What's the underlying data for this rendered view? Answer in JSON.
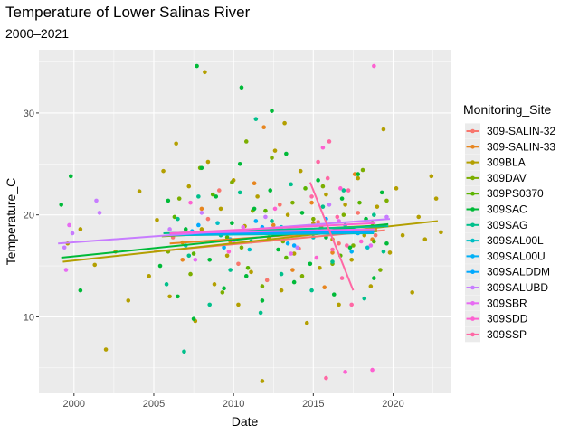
{
  "chart_data": {
    "type": "scatter",
    "title": "Temperature of Lower Salinas River",
    "subtitle": "2000–2021",
    "xlabel": "Date",
    "ylabel": "Temperature_C",
    "xlim": [
      1997.8,
      2023.6
    ],
    "ylim": [
      2.5,
      36.2
    ],
    "x_ticks": [
      2000,
      2005,
      2010,
      2015,
      2020
    ],
    "y_ticks": [
      10,
      20,
      30
    ],
    "x_tick_labels": [
      "2000",
      "2005",
      "2010",
      "2015",
      "2020"
    ],
    "y_tick_labels": [
      "10",
      "20",
      "30"
    ],
    "grid": true,
    "legend": {
      "title": "Monitoring_Site",
      "position": "right"
    },
    "series": [
      {
        "name": "309-SALIN-32",
        "color": "#F8766D",
        "trend": [
          [
            2005.0,
            16.4
          ],
          [
            2019.5,
            18.5
          ]
        ],
        "points": [
          [
            2006.2,
            17.8
          ],
          [
            2008.4,
            19.6
          ],
          [
            2010.3,
            15.2
          ],
          [
            2011.6,
            18.4
          ],
          [
            2012.9,
            21.0
          ],
          [
            2014.1,
            16.7
          ],
          [
            2015.3,
            19.3
          ],
          [
            2016.6,
            17.2
          ],
          [
            2017.8,
            20.2
          ],
          [
            2018.9,
            18.0
          ],
          [
            2012.1,
            13.6
          ],
          [
            2009.1,
            22.4
          ]
        ]
      },
      {
        "name": "309-SALIN-33",
        "color": "#E7851E",
        "trend": [
          [
            2006.0,
            17.2
          ],
          [
            2019.0,
            18.6
          ]
        ],
        "points": [
          [
            2006.8,
            15.6
          ],
          [
            2008.0,
            20.6
          ],
          [
            2009.8,
            17.4
          ],
          [
            2011.3,
            23.1
          ],
          [
            2012.5,
            19.0
          ],
          [
            2013.7,
            14.6
          ],
          [
            2014.9,
            21.2
          ],
          [
            2016.2,
            16.3
          ],
          [
            2017.6,
            24.0
          ],
          [
            2018.7,
            17.6
          ],
          [
            2011.9,
            28.6
          ],
          [
            2015.7,
            12.9
          ]
        ]
      },
      {
        "name": "309BLA",
        "color": "#B39F00",
        "trend": [
          [
            1999.3,
            15.4
          ],
          [
            2022.8,
            19.4
          ]
        ],
        "points": [
          [
            1999.6,
            17.2
          ],
          [
            2000.4,
            18.6
          ],
          [
            2001.3,
            15.1
          ],
          [
            2002.0,
            6.8
          ],
          [
            2002.6,
            16.4
          ],
          [
            2003.4,
            11.6
          ],
          [
            2004.1,
            22.3
          ],
          [
            2004.7,
            14.0
          ],
          [
            2005.2,
            19.5
          ],
          [
            2005.6,
            24.3
          ],
          [
            2006.0,
            12.0
          ],
          [
            2006.4,
            27.0
          ],
          [
            2006.8,
            17.3
          ],
          [
            2007.2,
            22.8
          ],
          [
            2007.6,
            9.6
          ],
          [
            2008.0,
            18.6
          ],
          [
            2008.4,
            25.2
          ],
          [
            2008.8,
            13.2
          ],
          [
            2009.2,
            20.6
          ],
          [
            2009.6,
            16.0
          ],
          [
            2010.0,
            23.4
          ],
          [
            2010.3,
            11.2
          ],
          [
            2010.7,
            18.9
          ],
          [
            2011.1,
            14.4
          ],
          [
            2011.5,
            21.8
          ],
          [
            2011.8,
            3.7
          ],
          [
            2012.2,
            17.8
          ],
          [
            2012.6,
            26.3
          ],
          [
            2013.0,
            12.6
          ],
          [
            2013.4,
            20.0
          ],
          [
            2013.8,
            16.2
          ],
          [
            2014.2,
            24.3
          ],
          [
            2014.6,
            9.4
          ],
          [
            2015.0,
            19.2
          ],
          [
            2015.4,
            14.8
          ],
          [
            2015.8,
            22.0
          ],
          [
            2016.2,
            17.6
          ],
          [
            2016.6,
            11.2
          ],
          [
            2017.0,
            21.0
          ],
          [
            2017.4,
            15.6
          ],
          [
            2017.8,
            23.6
          ],
          [
            2018.2,
            18.0
          ],
          [
            2018.6,
            13.0
          ],
          [
            2019.0,
            20.8
          ],
          [
            2019.4,
            28.4
          ],
          [
            2019.8,
            16.3
          ],
          [
            2020.2,
            22.6
          ],
          [
            2020.6,
            18.0
          ],
          [
            2021.2,
            12.4
          ],
          [
            2021.6,
            19.8
          ],
          [
            2022.0,
            17.6
          ],
          [
            2022.4,
            23.8
          ],
          [
            2022.7,
            21.6
          ],
          [
            2023.0,
            18.3
          ],
          [
            2013.2,
            29.0
          ],
          [
            2008.2,
            34.0
          ]
        ]
      },
      {
        "name": "309DAV",
        "color": "#7CAE00",
        "trend": [
          [
            2005.5,
            17.9
          ],
          [
            2019.6,
            19.0
          ]
        ],
        "points": [
          [
            2005.9,
            16.4
          ],
          [
            2006.6,
            21.6
          ],
          [
            2007.3,
            14.2
          ],
          [
            2007.9,
            24.6
          ],
          [
            2008.6,
            18.2
          ],
          [
            2009.3,
            12.4
          ],
          [
            2009.9,
            23.2
          ],
          [
            2010.5,
            16.8
          ],
          [
            2011.2,
            20.4
          ],
          [
            2011.8,
            13.0
          ],
          [
            2012.4,
            25.6
          ],
          [
            2013.1,
            17.4
          ],
          [
            2013.7,
            21.2
          ],
          [
            2014.3,
            14.0
          ],
          [
            2015.0,
            19.6
          ],
          [
            2015.6,
            22.8
          ],
          [
            2016.2,
            15.2
          ],
          [
            2016.9,
            20.0
          ],
          [
            2017.5,
            17.0
          ],
          [
            2018.1,
            24.4
          ],
          [
            2018.7,
            19.2
          ],
          [
            2019.2,
            14.6
          ],
          [
            2019.6,
            21.4
          ],
          [
            2010.8,
            27.2
          ]
        ]
      },
      {
        "name": "309PS0370",
        "color": "#5BB300",
        "trend": [
          [
            2006.0,
            18.0
          ],
          [
            2019.0,
            18.4
          ]
        ],
        "points": [
          [
            2006.3,
            19.8
          ],
          [
            2007.5,
            16.2
          ],
          [
            2008.7,
            22.0
          ],
          [
            2009.6,
            17.8
          ],
          [
            2010.9,
            14.8
          ],
          [
            2012.0,
            20.4
          ],
          [
            2013.3,
            15.8
          ],
          [
            2014.5,
            22.6
          ],
          [
            2015.5,
            18.8
          ],
          [
            2016.7,
            16.0
          ],
          [
            2017.9,
            21.2
          ],
          [
            2018.8,
            17.4
          ]
        ]
      },
      {
        "name": "309SAC",
        "color": "#00BA38",
        "trend": [
          [
            1999.2,
            15.8
          ],
          [
            2019.7,
            19.1
          ]
        ],
        "points": [
          [
            1999.2,
            21.0
          ],
          [
            1999.8,
            23.8
          ],
          [
            2000.4,
            12.6
          ],
          [
            2005.4,
            15.0
          ],
          [
            2005.9,
            21.4
          ],
          [
            2006.5,
            12.0
          ],
          [
            2007.0,
            18.6
          ],
          [
            2007.5,
            9.8
          ],
          [
            2008.0,
            24.6
          ],
          [
            2008.5,
            15.6
          ],
          [
            2008.9,
            21.8
          ],
          [
            2009.4,
            12.8
          ],
          [
            2009.9,
            19.2
          ],
          [
            2010.4,
            25.0
          ],
          [
            2010.8,
            14.0
          ],
          [
            2011.3,
            20.6
          ],
          [
            2011.8,
            11.6
          ],
          [
            2012.3,
            22.4
          ],
          [
            2012.8,
            16.6
          ],
          [
            2013.3,
            26.0
          ],
          [
            2013.8,
            13.4
          ],
          [
            2014.3,
            20.2
          ],
          [
            2014.8,
            15.2
          ],
          [
            2015.3,
            23.4
          ],
          [
            2015.8,
            17.8
          ],
          [
            2016.3,
            12.2
          ],
          [
            2016.8,
            21.6
          ],
          [
            2017.3,
            16.8
          ],
          [
            2017.8,
            24.0
          ],
          [
            2018.3,
            19.6
          ],
          [
            2018.8,
            13.8
          ],
          [
            2019.3,
            22.2
          ],
          [
            2019.6,
            17.2
          ],
          [
            2010.5,
            32.5
          ],
          [
            2007.7,
            34.6
          ],
          [
            2012.4,
            30.2
          ]
        ]
      },
      {
        "name": "309SAG",
        "color": "#00C08B",
        "trend": [
          [
            2005.6,
            18.2
          ],
          [
            2019.7,
            18.9
          ]
        ],
        "points": [
          [
            2005.8,
            13.2
          ],
          [
            2006.5,
            19.6
          ],
          [
            2007.2,
            16.0
          ],
          [
            2007.8,
            21.8
          ],
          [
            2008.5,
            11.2
          ],
          [
            2009.2,
            18.0
          ],
          [
            2009.8,
            14.6
          ],
          [
            2010.4,
            22.2
          ],
          [
            2011.1,
            17.4
          ],
          [
            2011.7,
            10.4
          ],
          [
            2012.4,
            19.4
          ],
          [
            2013.0,
            14.2
          ],
          [
            2013.6,
            23.0
          ],
          [
            2014.3,
            18.2
          ],
          [
            2014.9,
            12.6
          ],
          [
            2015.6,
            20.8
          ],
          [
            2016.2,
            15.4
          ],
          [
            2016.9,
            22.4
          ],
          [
            2017.5,
            18.6
          ],
          [
            2018.2,
            11.8
          ],
          [
            2018.8,
            20.0
          ],
          [
            2019.4,
            16.4
          ],
          [
            2006.9,
            6.6
          ],
          [
            2011.4,
            29.4
          ]
        ]
      },
      {
        "name": "309SAL00L",
        "color": "#00BFC4",
        "trend": [
          [
            2006.0,
            18.0
          ],
          [
            2018.8,
            18.2
          ]
        ],
        "points": [
          [
            2007.0,
            17.0
          ],
          [
            2009.0,
            19.2
          ],
          [
            2011.0,
            16.6
          ],
          [
            2013.0,
            18.8
          ],
          [
            2015.0,
            17.8
          ],
          [
            2017.0,
            19.0
          ],
          [
            2018.4,
            16.8
          ]
        ]
      },
      {
        "name": "309SAL00U",
        "color": "#00B0F6",
        "trend": [
          [
            2006.0,
            18.1
          ],
          [
            2018.8,
            18.3
          ]
        ],
        "points": [
          [
            2007.4,
            18.4
          ],
          [
            2009.4,
            16.8
          ],
          [
            2011.4,
            19.4
          ],
          [
            2013.4,
            17.2
          ],
          [
            2015.4,
            18.6
          ],
          [
            2017.4,
            16.4
          ]
        ]
      },
      {
        "name": "309SALDDM",
        "color": "#00A9FF",
        "trend": [
          [
            2006.0,
            18.1
          ],
          [
            2018.8,
            18.4
          ]
        ],
        "points": [
          [
            2007.8,
            19.0
          ],
          [
            2009.8,
            17.6
          ],
          [
            2011.8,
            18.8
          ],
          [
            2013.8,
            17.0
          ],
          [
            2015.8,
            19.6
          ],
          [
            2017.8,
            18.2
          ]
        ]
      },
      {
        "name": "309SALUBD",
        "color": "#C77CFF",
        "trend": [
          [
            1999.0,
            17.2
          ],
          [
            2019.8,
            19.6
          ]
        ],
        "points": [
          [
            1999.4,
            16.8
          ],
          [
            1999.9,
            18.2
          ],
          [
            2001.4,
            21.4
          ],
          [
            2001.6,
            20.2
          ],
          [
            2006.0,
            18.6
          ],
          [
            2008.0,
            20.2
          ],
          [
            2010.0,
            17.4
          ],
          [
            2012.0,
            19.8
          ],
          [
            2014.0,
            16.8
          ],
          [
            2016.0,
            21.0
          ],
          [
            2018.0,
            18.4
          ],
          [
            2019.6,
            19.8
          ]
        ]
      },
      {
        "name": "309SBR",
        "color": "#E76BF3",
        "trend": [
          [
            2006.0,
            18.2
          ],
          [
            2018.9,
            18.6
          ]
        ],
        "points": [
          [
            1999.5,
            14.6
          ],
          [
            1999.7,
            19.0
          ],
          [
            2007.6,
            15.6
          ],
          [
            2010.6,
            18.8
          ],
          [
            2013.6,
            16.2
          ],
          [
            2016.6,
            19.4
          ],
          [
            2018.6,
            17.0
          ]
        ]
      },
      {
        "name": "309SDD",
        "color": "#FD61D1",
        "trend": [
          [
            2006.0,
            18.2
          ],
          [
            2018.9,
            19.2
          ]
        ],
        "points": [
          [
            2007.3,
            21.2
          ],
          [
            2009.7,
            16.4
          ],
          [
            2012.6,
            20.6
          ],
          [
            2015.2,
            15.8
          ],
          [
            2016.7,
            22.6
          ],
          [
            2018.0,
            17.4
          ],
          [
            2015.6,
            26.6
          ],
          [
            2017.0,
            4.6
          ],
          [
            2018.7,
            4.8
          ],
          [
            2018.8,
            34.6
          ]
        ]
      },
      {
        "name": "309SSP",
        "color": "#FF67A4",
        "trend": [
          [
            2014.8,
            23.2
          ],
          [
            2017.5,
            12.6
          ]
        ],
        "points": [
          [
            2014.9,
            21.8
          ],
          [
            2015.3,
            25.2
          ],
          [
            2015.6,
            18.4
          ],
          [
            2015.9,
            23.6
          ],
          [
            2016.2,
            16.6
          ],
          [
            2016.5,
            19.8
          ],
          [
            2016.8,
            13.8
          ],
          [
            2017.1,
            17.0
          ],
          [
            2017.4,
            11.2
          ],
          [
            2015.8,
            4.0
          ],
          [
            2016.0,
            27.2
          ],
          [
            2017.2,
            22.4
          ]
        ]
      }
    ]
  }
}
